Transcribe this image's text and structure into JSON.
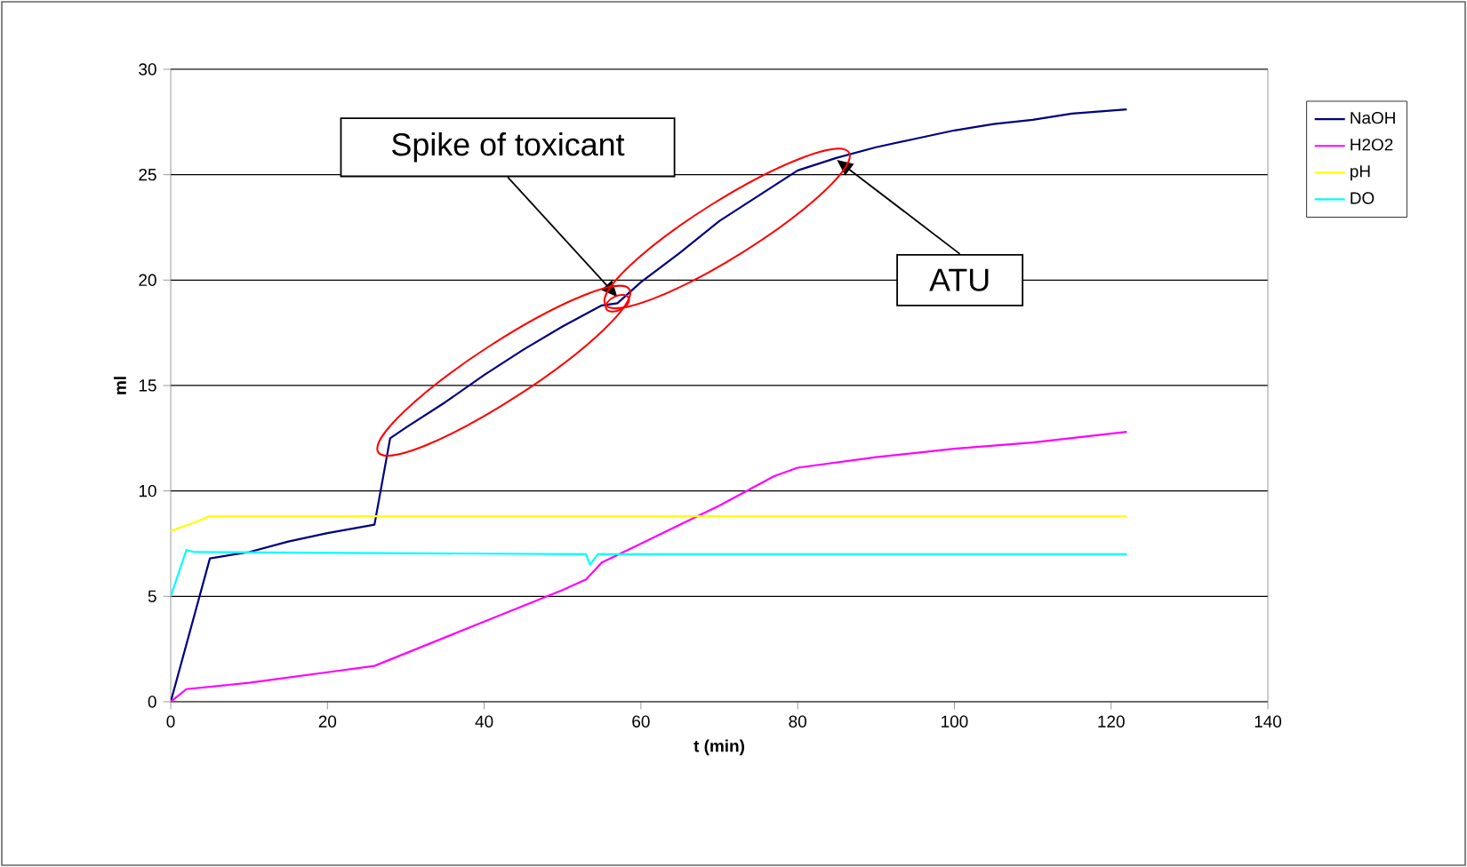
{
  "chart_data": {
    "type": "line",
    "xlabel": "t (min)",
    "ylabel": "ml",
    "xlim": [
      0,
      140
    ],
    "ylim": [
      0,
      30
    ],
    "xticks": [
      0,
      20,
      40,
      60,
      80,
      100,
      120,
      140
    ],
    "yticks": [
      0,
      5,
      10,
      15,
      20,
      25,
      30
    ],
    "grid": "y",
    "legend": "right",
    "marker": "none",
    "line_style": "solid",
    "series": [
      {
        "name": "NaOH",
        "color": "#000080",
        "x": [
          0,
          5,
          10,
          15,
          20,
          26,
          28,
          30,
          35,
          40,
          45,
          50,
          55,
          57,
          60,
          65,
          70,
          75,
          80,
          85,
          90,
          95,
          100,
          105,
          110,
          115,
          122
        ],
        "values": [
          0,
          6.8,
          7.1,
          7.6,
          8.0,
          8.4,
          12.5,
          13.0,
          14.2,
          15.5,
          16.7,
          17.8,
          18.8,
          18.9,
          19.9,
          21.3,
          22.8,
          24.0,
          25.2,
          25.8,
          26.3,
          26.7,
          27.1,
          27.4,
          27.6,
          27.9,
          28.1
        ]
      },
      {
        "name": "H2O2",
        "color": "#ff00ff",
        "x": [
          0,
          2,
          10,
          20,
          26,
          30,
          40,
          50,
          53,
          55,
          60,
          70,
          77,
          80,
          90,
          100,
          110,
          122
        ],
        "values": [
          0,
          0.6,
          0.9,
          1.4,
          1.7,
          2.3,
          3.8,
          5.3,
          5.8,
          6.6,
          7.5,
          9.3,
          10.7,
          11.1,
          11.6,
          12.0,
          12.3,
          12.8
        ]
      },
      {
        "name": "pH",
        "color": "#ffff00",
        "x": [
          0,
          3,
          5,
          122
        ],
        "values": [
          8.1,
          8.5,
          8.8,
          8.8
        ]
      },
      {
        "name": "DO",
        "color": "#00ffff",
        "x": [
          0,
          2,
          3,
          53,
          53.5,
          54.5,
          122
        ],
        "values": [
          5.0,
          7.2,
          7.1,
          7.0,
          6.5,
          7.0,
          7.0
        ]
      }
    ],
    "annotations": [
      {
        "text": "Spike of toxicant",
        "x": 57,
        "y": 19.2
      },
      {
        "text": "ATU",
        "x": 85,
        "y": 25.7
      }
    ]
  }
}
